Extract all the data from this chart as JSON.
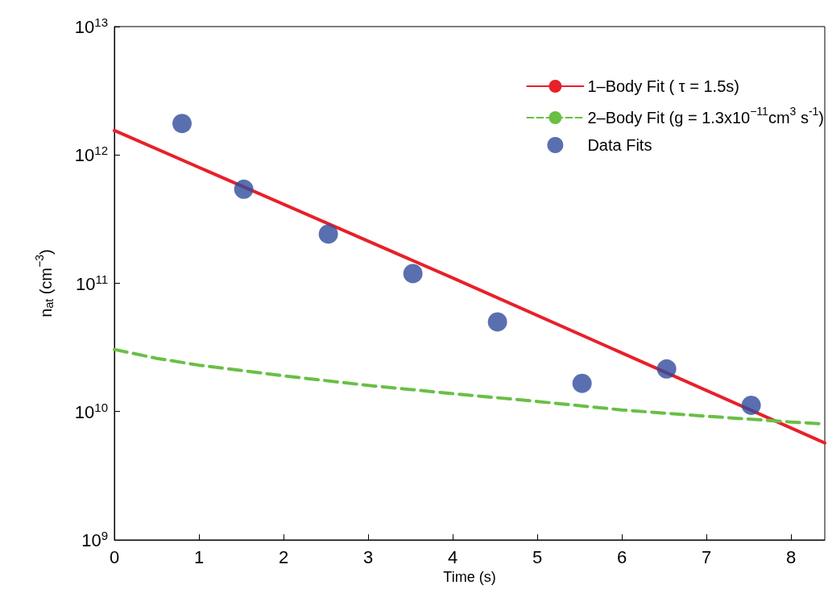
{
  "chart_data": {
    "type": "line",
    "xlabel": "Time (s)",
    "ylabel": "n$_{at}$ (cm$^{−3}$)",
    "log": "y",
    "xlim": [
      0,
      8.4
    ],
    "xticks": [
      0,
      1,
      2,
      3,
      4,
      5,
      6,
      7,
      8
    ],
    "ylim": [
      1000000000.0,
      10000000000000.0
    ],
    "yticks": [
      {
        "value": 1000000000.0,
        "label": "10$^{9}$"
      },
      {
        "value": 10000000000.0,
        "label": "10$^{10}$"
      },
      {
        "value": 100000000000.0,
        "label": "10$^{11}$"
      },
      {
        "value": 1000000000000.0,
        "label": "10$^{12}$"
      },
      {
        "value": 10000000000000.0,
        "label": "10$^{13}$"
      }
    ],
    "grid": false,
    "legend": "top right",
    "series": [
      {
        "name": "1–Body Fit ( τ = 1.5s)",
        "type": "line",
        "color": "#e8202a",
        "line_style": "solid",
        "marker": "none",
        "x": [
          0,
          4,
          8.4
        ],
        "values": [
          1550000000000.0,
          110000000000.0,
          5700000000.0
        ]
      },
      {
        "name": "2–Body Fit (g = 1.3x10$^{−11}$cm$^{3}$ s$^{-1}$)",
        "type": "line",
        "color": "#6abf45",
        "line_style": "dashed",
        "marker": "none",
        "x": [
          0,
          0.5,
          1,
          2,
          3,
          4,
          5,
          6,
          7,
          8,
          8.4
        ],
        "values": [
          30500000000.0,
          26000000000.0,
          23000000000.0,
          19000000000.0,
          16000000000.0,
          13800000000.0,
          12000000000.0,
          10300000000.0,
          9200000000.0,
          8300000000.0,
          8000000000.0
        ]
      },
      {
        "name": "Data Fits",
        "type": "scatter",
        "color": "#2f4b9b",
        "marker": "circle",
        "x": [
          0.8,
          1.53,
          2.53,
          3.53,
          4.53,
          5.53,
          6.53,
          7.53
        ],
        "values": [
          1760000000000.0,
          540000000000.0,
          242000000000.0,
          119000000000.0,
          50000000000.0,
          16600000000.0,
          21500000000.0,
          11200000000.0
        ]
      }
    ]
  }
}
